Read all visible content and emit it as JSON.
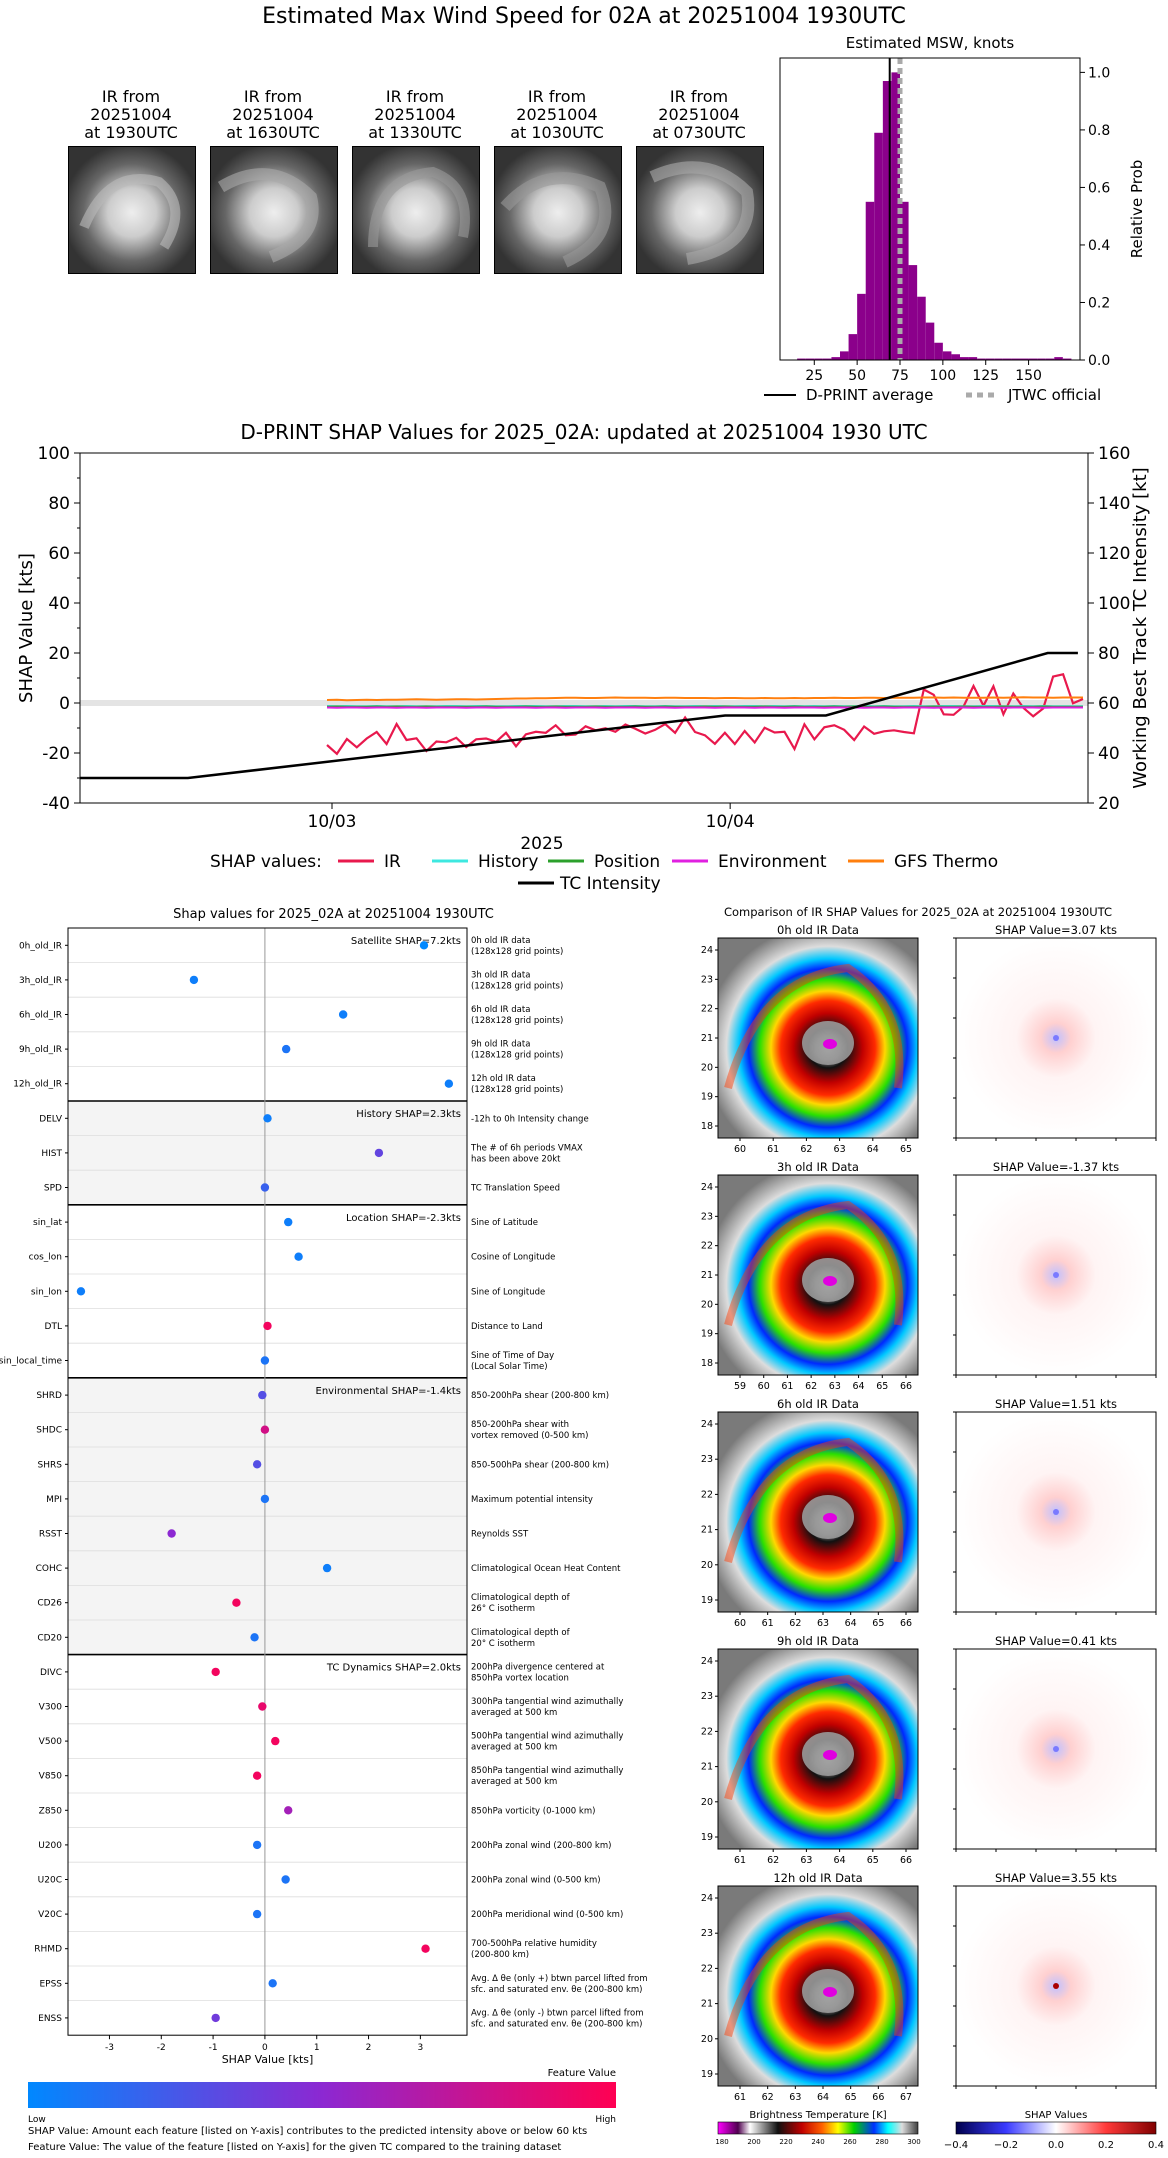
{
  "main_title": "Estimated Max Wind Speed for 02A at 20251004 1930UTC",
  "thumbnails": [
    {
      "title": "IR from\n20251004\nat 1930UTC"
    },
    {
      "title": "IR from\n20251004\nat 1630UTC"
    },
    {
      "title": "IR from\n20251004\nat 1330UTC"
    },
    {
      "title": "IR from\n20251004\nat 1030UTC"
    },
    {
      "title": "IR from\n20251004\nat 0730UTC"
    }
  ],
  "chart_data": [
    {
      "type": "bar",
      "title": "Estimated MSW, knots",
      "ylabel": "Relative Prob",
      "xlim": [
        5,
        180
      ],
      "ylim": [
        0,
        1.05
      ],
      "xticks": [
        25,
        50,
        75,
        100,
        125,
        150
      ],
      "yticks": [
        0.0,
        0.2,
        0.4,
        0.6,
        0.8,
        1.0
      ],
      "bins_start": 15,
      "bin_width": 5,
      "values": [
        0.005,
        0.005,
        0.005,
        0.005,
        0.01,
        0.03,
        0.09,
        0.23,
        0.55,
        0.79,
        0.97,
        1.0,
        0.55,
        0.33,
        0.22,
        0.13,
        0.06,
        0.03,
        0.02,
        0.01,
        0.01,
        0.005,
        0.005,
        0.005,
        0.005,
        0.005,
        0.005,
        0.005,
        0.005,
        0.005,
        0.01,
        0.005
      ],
      "dprint_average": 69,
      "jtwc_official": 75,
      "legend": {
        "dprint": "D-PRINT average",
        "jtwc": "JTWC official"
      },
      "colors": {
        "bars": "#8b008b",
        "dprint": "#000000",
        "jtwc": "#aaaaaa"
      }
    },
    {
      "type": "line",
      "title": "D-PRINT SHAP Values for 2025_02A: updated at 20251004 1930 UTC",
      "ylabel": "SHAP Value [kts]",
      "ylabel_right": "Working Best Track TC Intensity [kt]",
      "xlabel": "2025",
      "x_ticks": [
        {
          "label": "10/03",
          "t": 0.25
        },
        {
          "label": "10/04",
          "t": 0.645
        }
      ],
      "ylim": [
        -40,
        100
      ],
      "ylim_right": [
        20,
        160
      ],
      "yticks": [
        -40,
        -20,
        0,
        20,
        40,
        60,
        80,
        100
      ],
      "yticks_right": [
        20,
        40,
        60,
        80,
        100,
        120,
        140,
        160
      ],
      "legend_label": "SHAP values:",
      "series": [
        {
          "name": "IR",
          "color": "#e8194d",
          "values": [
            -16.8,
            -20.3,
            -14.4,
            -17.7,
            -14.2,
            -11.6,
            -16.4,
            -8.4,
            -14.8,
            -14.1,
            -19.2,
            -15.4,
            -15.7,
            -13.9,
            -17.6,
            -14.5,
            -14.2,
            -15.5,
            -11.9,
            -17.3,
            -12.5,
            -11.5,
            -11.9,
            -8.9,
            -12.9,
            -12.6,
            -9.3,
            -10.9,
            -10.1,
            -11.5,
            -8.6,
            -10.3,
            -12.2,
            -10.7,
            -8.4,
            -11.9,
            -5.8,
            -11.6,
            -12.9,
            -16.3,
            -11.9,
            -16.4,
            -11.2,
            -15.8,
            -9.9,
            -11.8,
            -11.5,
            -18.4,
            -8.5,
            -14.5,
            -9.7,
            -8.9,
            -10.7,
            -14.8,
            -9.4,
            -12.3,
            -11.3,
            -10.9,
            -11.6,
            -12.1,
            5.4,
            3.3,
            -4.5,
            -4.7,
            -1.3,
            6.8,
            -1.1,
            6.7,
            -4.5,
            3.8,
            -1.9,
            -5.3,
            -2.2,
            10.6,
            11.5,
            -0.1,
            1.6
          ]
        },
        {
          "name": "History",
          "color": "#3ee8e0",
          "values": [
            -1.2,
            -1.3,
            -1.2,
            -1.3,
            -1.3,
            -1.2,
            -1.3,
            -1.3,
            -1.2,
            -1.3,
            -1.3,
            -1.3,
            -1.2,
            -1.2,
            -1.3,
            -1.2,
            -1.2,
            -1.3,
            -1.3,
            -1.2,
            -1.2,
            -1.2,
            -1.3,
            -1.3,
            -1.2,
            -1.2,
            -1.3,
            -1.3,
            -1.2,
            -1.3,
            -1.2,
            -1.2,
            -1.3,
            -1.3,
            -1.2,
            -1.3,
            -1.3,
            -1.2,
            -1.3,
            -1.2,
            -1.3,
            -1.3,
            -1.2,
            -1.2,
            -1.3,
            -1.2,
            -1.3,
            -1.2,
            -1.3,
            -1.2,
            -1.3,
            -1.2,
            -1.3,
            -1.3,
            -1.2,
            -1.3,
            -1.2,
            -1.3,
            -1.3,
            -1.2,
            -1.3,
            -1.3,
            -1.2,
            -1.2,
            -1.3,
            -1.3,
            -1.2,
            -1.2,
            -1.3,
            -1.3,
            -1.2,
            -1.3,
            -1.2,
            -1.3,
            -1.3,
            -1.3,
            -1.3
          ]
        },
        {
          "name": "Position",
          "color": "#2ca02c",
          "values": [
            -1.5,
            -1.4,
            -1.5,
            -1.5,
            -1.5,
            -1.4,
            -1.5,
            -1.4,
            -1.5,
            -1.5,
            -1.4,
            -1.5,
            -1.5,
            -1.5,
            -1.5,
            -1.5,
            -1.4,
            -1.5,
            -1.5,
            -1.5,
            -1.4,
            -1.5,
            -1.5,
            -1.4,
            -1.5,
            -1.5,
            -1.5,
            -1.4,
            -1.5,
            -1.5,
            -1.5,
            -1.4,
            -1.5,
            -1.5,
            -1.4,
            -1.5,
            -1.5,
            -1.5,
            -1.4,
            -1.5,
            -1.4,
            -1.5,
            -1.5,
            -1.5,
            -1.4,
            -1.5,
            -1.5,
            -1.4,
            -1.5,
            -1.5,
            -1.5,
            -1.4,
            -1.5,
            -1.4,
            -1.5,
            -1.5,
            -1.4,
            -1.5,
            -1.5,
            -1.5,
            -1.5,
            -1.4,
            -1.5,
            -1.5,
            -1.4,
            -1.5,
            -1.5,
            -1.5,
            -1.4,
            -1.5,
            -1.5,
            -1.5,
            -1.4,
            -1.5,
            -1.5,
            -1.5,
            -1.5
          ]
        },
        {
          "name": "Environment",
          "color": "#e020e0",
          "values": [
            -1.8,
            -1.9,
            -1.8,
            -1.8,
            -1.9,
            -1.8,
            -1.8,
            -1.9,
            -1.8,
            -1.8,
            -1.9,
            -1.8,
            -1.8,
            -1.8,
            -1.9,
            -1.8,
            -1.8,
            -1.9,
            -1.8,
            -1.8,
            -1.8,
            -1.9,
            -1.8,
            -1.8,
            -1.9,
            -1.8,
            -1.8,
            -1.8,
            -1.9,
            -1.8,
            -1.8,
            -1.8,
            -1.9,
            -1.8,
            -1.8,
            -1.9,
            -1.8,
            -1.8,
            -1.8,
            -1.9,
            -1.8,
            -1.8,
            -1.8,
            -1.9,
            -1.8,
            -1.8,
            -1.9,
            -1.8,
            -1.8,
            -1.8,
            -1.9,
            -1.8,
            -1.8,
            -1.8,
            -1.9,
            -1.8,
            -1.8,
            -1.9,
            -1.8,
            -1.8,
            -1.8,
            -1.9,
            -1.8,
            -1.8,
            -1.8,
            -1.9,
            -1.8,
            -1.8,
            -1.9,
            -1.8,
            -1.8,
            -1.8,
            -1.9,
            -1.8,
            -1.8,
            -1.8,
            -1.8
          ]
        },
        {
          "name": "GFS Thermo",
          "color": "#ff7f0e",
          "values": [
            1.2,
            1.3,
            1.1,
            1.2,
            1.3,
            1.2,
            1.3,
            1.3,
            1.4,
            1.5,
            1.4,
            1.3,
            1.4,
            1.5,
            1.5,
            1.4,
            1.5,
            1.6,
            1.7,
            1.8,
            1.8,
            1.9,
            1.9,
            2.0,
            2.1,
            2.1,
            2.0,
            2.0,
            2.1,
            2.2,
            2.1,
            2.1,
            2.1,
            2.0,
            2.1,
            2.1,
            2.0,
            2.0,
            2.0,
            1.9,
            2.0,
            2.0,
            1.9,
            1.9,
            2.0,
            1.9,
            1.9,
            2.0,
            1.9,
            2.0,
            2.0,
            2.1,
            2.0,
            2.0,
            2.1,
            2.1,
            2.0,
            2.1,
            2.1,
            2.1,
            2.2,
            2.2,
            2.1,
            2.2,
            2.1,
            2.1,
            2.1,
            2.2,
            2.1,
            2.2,
            2.3,
            2.2,
            2.2,
            2.1,
            2.2,
            2.2,
            2.2
          ]
        }
      ],
      "tc_intensity": {
        "name": "TC Intensity",
        "color": "#000000",
        "points": [
          [
            0.0,
            30
          ],
          [
            0.107,
            30
          ],
          [
            0.64,
            55
          ],
          [
            0.74,
            55
          ],
          [
            0.96,
            80
          ],
          [
            0.99,
            80
          ]
        ]
      }
    },
    {
      "type": "scatter",
      "title": "Shap values for 2025_02A at 20251004 1930UTC",
      "xlabel": "SHAP Value [kts]",
      "xlim": [
        -3.8,
        3.9
      ],
      "xticks": [
        -3,
        -2,
        -1,
        0,
        1,
        2,
        3
      ],
      "colorbar": {
        "label": "Feature Value",
        "low": "Low",
        "high": "High"
      },
      "groups": [
        {
          "label": "Satellite SHAP=7.2kts",
          "features": [
            {
              "name": "0h_old_IR",
              "desc": "0h old IR data\n(128x128 grid points)",
              "shap": 3.07,
              "v": 0.0
            },
            {
              "name": "3h_old_IR",
              "desc": "3h old IR data\n(128x128 grid points)",
              "shap": -1.37,
              "v": 0.05
            },
            {
              "name": "6h_old_IR",
              "desc": "6h old IR data\n(128x128 grid points)",
              "shap": 1.51,
              "v": 0.05
            },
            {
              "name": "9h_old_IR",
              "desc": "9h old IR data\n(128x128 grid points)",
              "shap": 0.41,
              "v": 0.1
            },
            {
              "name": "12h_old_IR",
              "desc": "12h old IR data\n(128x128 grid points)",
              "shap": 3.55,
              "v": 0.05
            }
          ]
        },
        {
          "label": "History SHAP=2.3kts",
          "features": [
            {
              "name": "DELV",
              "desc": "-12h to 0h Intensity change",
              "shap": 0.05,
              "v": 0.05
            },
            {
              "name": "HIST",
              "desc": "The # of 6h periods VMAX\nhas been above 20kt",
              "shap": 2.2,
              "v": 0.35
            },
            {
              "name": "SPD",
              "desc": "TC Translation Speed",
              "shap": 0.0,
              "v": 0.2
            }
          ]
        },
        {
          "label": "Location SHAP=-2.3kts",
          "features": [
            {
              "name": "sin_lat",
              "desc": "Sine of Latitude",
              "shap": 0.45,
              "v": 0.05
            },
            {
              "name": "cos_lon",
              "desc": "Cosine of Longitude",
              "shap": 0.65,
              "v": 0.05
            },
            {
              "name": "sin_lon",
              "desc": "Sine of Longitude",
              "shap": -3.55,
              "v": 0.05
            },
            {
              "name": "DTL",
              "desc": "Distance to Land",
              "shap": 0.05,
              "v": 0.95
            },
            {
              "name": "sin_local_time",
              "desc": "Sine of Time of Day\n(Local Solar Time)",
              "shap": 0.0,
              "v": 0.1
            }
          ]
        },
        {
          "label": "Environmental SHAP=-1.4kts",
          "features": [
            {
              "name": "SHRD",
              "desc": "850-200hPa shear (200-800 km)",
              "shap": -0.05,
              "v": 0.3
            },
            {
              "name": "SHDC",
              "desc": "850-200hPa shear with\nvortex removed (0-500 km)",
              "shap": 0.0,
              "v": 0.8
            },
            {
              "name": "SHRS",
              "desc": "850-500hPa shear (200-800 km)",
              "shap": -0.15,
              "v": 0.3
            },
            {
              "name": "MPI",
              "desc": "Maximum potential intensity",
              "shap": 0.0,
              "v": 0.1
            },
            {
              "name": "RSST",
              "desc": "Reynolds SST",
              "shap": -1.8,
              "v": 0.5
            },
            {
              "name": "COHC",
              "desc": "Climatological Ocean Heat Content",
              "shap": 1.2,
              "v": 0.05
            },
            {
              "name": "CD26",
              "desc": "Climatological depth of\n26° C isotherm",
              "shap": -0.55,
              "v": 0.95
            },
            {
              "name": "CD20",
              "desc": "Climatological depth of\n20° C isotherm",
              "shap": -0.2,
              "v": 0.1
            }
          ]
        },
        {
          "label": "TC Dynamics SHAP=2.0kts",
          "features": [
            {
              "name": "DIVC",
              "desc": "200hPa divergence centered at\n850hPa vortex location",
              "shap": -0.95,
              "v": 0.95
            },
            {
              "name": "V300",
              "desc": "300hPa tangential wind azimuthally\naveraged at 500 km",
              "shap": -0.05,
              "v": 0.9
            },
            {
              "name": "V500",
              "desc": "500hPa tangential wind azimuthally\naveraged at 500 km",
              "shap": 0.2,
              "v": 0.95
            },
            {
              "name": "V850",
              "desc": "850hPa tangential wind azimuthally\naveraged at 500 km",
              "shap": -0.15,
              "v": 0.95
            },
            {
              "name": "Z850",
              "desc": "850hPa vorticity (0-1000 km)",
              "shap": 0.45,
              "v": 0.6
            },
            {
              "name": "U200",
              "desc": "200hPa zonal wind (200-800 km)",
              "shap": -0.15,
              "v": 0.1
            },
            {
              "name": "U20C",
              "desc": "200hPa zonal wind (0-500 km)",
              "shap": 0.4,
              "v": 0.1
            },
            {
              "name": "V20C",
              "desc": "200hPa meridional wind (0-500 km)",
              "shap": -0.15,
              "v": 0.1
            },
            {
              "name": "RHMD",
              "desc": "700-500hPa relative humidity\n(200-800 km)",
              "shap": 3.1,
              "v": 0.95
            },
            {
              "name": "EPSS",
              "desc": "Avg. Δ θe (only +) btwn parcel lifted from\nsfc. and saturated env. θe (200-800 km)",
              "shap": 0.15,
              "v": 0.1
            },
            {
              "name": "ENSS",
              "desc": "Avg. Δ θe (only -) btwn parcel lifted from\nsfc. and saturated env. θe (200-800 km)",
              "shap": -0.95,
              "v": 0.4
            }
          ]
        }
      ]
    },
    {
      "type": "heatmap",
      "title": "Comparison of IR SHAP Values for 2025_02A at 20251004 1930UTC",
      "rows": [
        {
          "ir_title": "0h old IR Data",
          "shap_title": "SHAP Value=3.07 kts",
          "xticks": [
            "60",
            "61",
            "62",
            "63",
            "64",
            "65"
          ],
          "yticks": [
            "24",
            "23",
            "22",
            "21",
            "20",
            "19",
            "18"
          ]
        },
        {
          "ir_title": "3h old IR Data",
          "shap_title": "SHAP Value=-1.37 kts",
          "xticks": [
            "59",
            "60",
            "61",
            "62",
            "63",
            "64",
            "65",
            "66"
          ],
          "yticks": [
            "24",
            "23",
            "22",
            "21",
            "20",
            "19",
            "18"
          ]
        },
        {
          "ir_title": "6h old IR Data",
          "shap_title": "SHAP Value=1.51 kts",
          "xticks": [
            "60",
            "61",
            "62",
            "63",
            "64",
            "65",
            "66"
          ],
          "yticks": [
            "24",
            "23",
            "22",
            "21",
            "20",
            "19"
          ]
        },
        {
          "ir_title": "9h old IR Data",
          "shap_title": "SHAP Value=0.41 kts",
          "xticks": [
            "61",
            "62",
            "63",
            "64",
            "65",
            "66"
          ],
          "yticks": [
            "24",
            "23",
            "22",
            "21",
            "20",
            "19"
          ]
        },
        {
          "ir_title": "12h old IR Data",
          "shap_title": "SHAP Value=3.55 kts",
          "xticks": [
            "61",
            "62",
            "63",
            "64",
            "65",
            "66",
            "67"
          ],
          "yticks": [
            "24",
            "23",
            "22",
            "21",
            "20",
            "19"
          ]
        }
      ],
      "bt_colorbar": {
        "label": "Brightness Temperature [K]",
        "ticks": [
          "180",
          "200",
          "220",
          "240",
          "260",
          "280",
          "300"
        ]
      },
      "shap_colorbar": {
        "label": "SHAP Values",
        "ticks": [
          "−0.4",
          "−0.2",
          "0.0",
          "0.2",
          "0.4"
        ]
      }
    }
  ],
  "footnotes": {
    "line1": "SHAP Value: Amount each feature [listed on Y-axis] contributes to the predicted intensity above or below 60 kts",
    "line2": "Feature Value: The value of the feature [listed on Y-axis] for the given TC compared to the training dataset"
  }
}
